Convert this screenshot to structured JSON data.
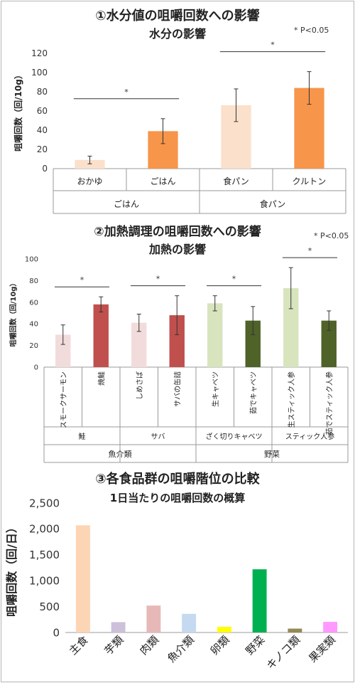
{
  "chart_data": [
    {
      "type": "bar",
      "title": "①水分値の咀嚼回数への影響",
      "subtitle": "水分の影響",
      "note": "* P<0.05",
      "ylabel": "咀嚼回数（回/10g）",
      "ylim": [
        0,
        120
      ],
      "yticks": [
        "0",
        "20",
        "40",
        "60",
        "80",
        "100",
        "120"
      ],
      "categories": [
        "おかゆ",
        "ごはん",
        "食パン",
        "クルトン"
      ],
      "groups": [
        "ごはん",
        "食パン"
      ],
      "values": [
        9,
        39,
        66,
        84
      ],
      "errors": [
        4,
        13,
        17,
        17
      ],
      "colors": [
        "#fbe0cc",
        "#f7954a",
        "#fbe0cc",
        "#f7954a"
      ],
      "significance": [
        "*",
        "*"
      ]
    },
    {
      "type": "bar",
      "title": "②加熱調理の咀嚼回数への影響",
      "subtitle": "加熱の影響",
      "note": "* P<0.05",
      "ylabel": "咀嚼回数（回/10g）",
      "ylim": [
        0,
        100
      ],
      "yticks": [
        "0",
        "20",
        "40",
        "60",
        "80",
        "100"
      ],
      "categories": [
        "スモークサーモン",
        "焼鮭",
        "しめさば",
        "サバの缶詰",
        "生キャベツ",
        "茹でキャベツ",
        "生スティック人参",
        "茹でスティック人参"
      ],
      "subgroups": [
        "鮭",
        "サバ",
        "ざく切りキャベツ",
        "スティック人参"
      ],
      "groups": [
        "魚介類",
        "野菜"
      ],
      "values": [
        30,
        58,
        41,
        48,
        59,
        43,
        73,
        43
      ],
      "errors": [
        9,
        7,
        8,
        18,
        7,
        13,
        19,
        9
      ],
      "colors": [
        "#f2dcdb",
        "#c0504d",
        "#f2dcdb",
        "#c0504d",
        "#d7e4bd",
        "#4f6228",
        "#d7e4bd",
        "#4f6228"
      ],
      "significance": [
        "*",
        "*",
        "*",
        "*"
      ]
    },
    {
      "type": "bar",
      "title": "③各食品群の咀嚼階位の比較",
      "subtitle": "1日当たりの咀嚼回数の概算",
      "ylabel": "咀嚼回数（回/日）",
      "ylim": [
        0,
        2500
      ],
      "yticks": [
        "0",
        "500",
        "1,000",
        "1,500",
        "2,000",
        "2,500"
      ],
      "categories": [
        "主食",
        "芋類",
        "肉類",
        "魚介類",
        "卵類",
        "野菜",
        "キノコ類",
        "果実類"
      ],
      "values": [
        2070,
        200,
        520,
        360,
        110,
        1220,
        75,
        205
      ],
      "colors": [
        "#fcd5b4",
        "#ccc0da",
        "#e6b9b8",
        "#c5d9f1",
        "#ffff00",
        "#00b050",
        "#948a54",
        "#ff99ff"
      ]
    }
  ]
}
